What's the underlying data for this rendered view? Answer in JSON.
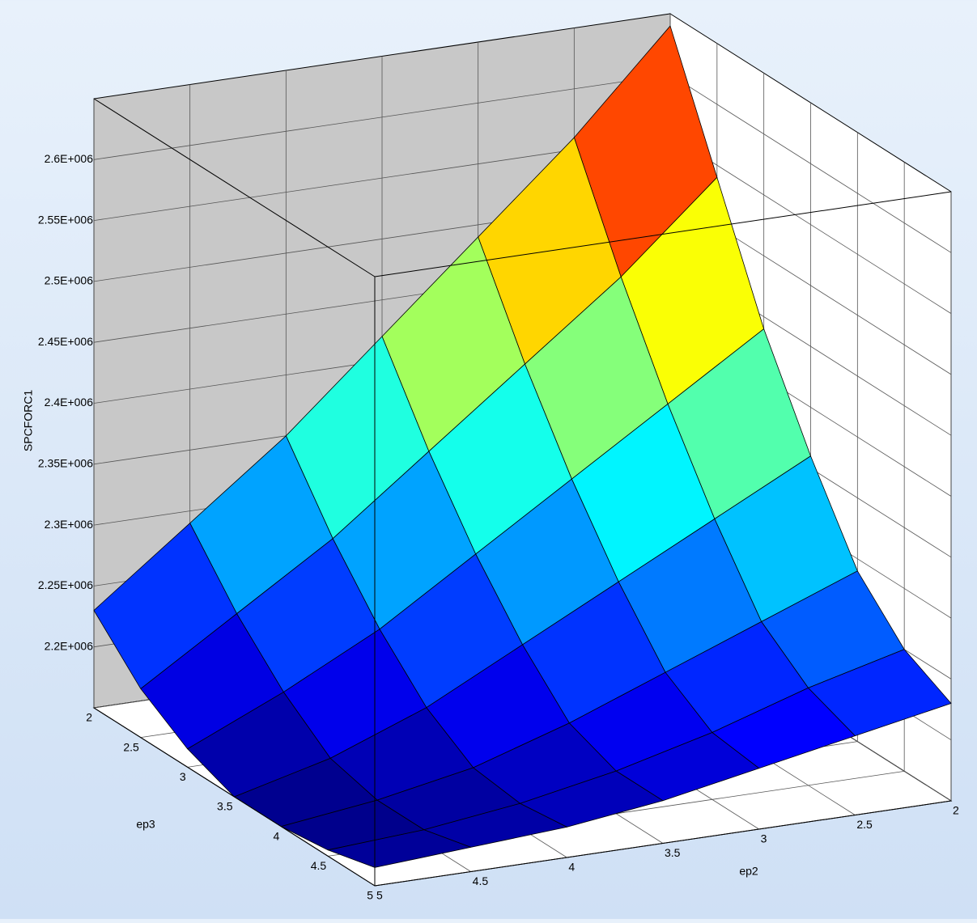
{
  "chart_data": {
    "type": "surface",
    "x_label": "ep2",
    "y_label": "ep3",
    "z_label": "SPCFORC1",
    "x": [
      2,
      2.5,
      3,
      3.5,
      4,
      4.5,
      5
    ],
    "y": [
      2,
      2.5,
      3,
      3.5,
      4,
      4.5,
      5
    ],
    "z": [
      [
        2640000,
        2540000,
        2440000,
        2360000,
        2290000,
        2250000,
        2230000
      ],
      [
        2560000,
        2470000,
        2390000,
        2320000,
        2260000,
        2230000,
        2215000
      ],
      [
        2490000,
        2410000,
        2340000,
        2280000,
        2230000,
        2205000,
        2200000
      ],
      [
        2420000,
        2350000,
        2290000,
        2240000,
        2200000,
        2185000,
        2185000
      ],
      [
        2350000,
        2290000,
        2240000,
        2200000,
        2175000,
        2170000,
        2175000
      ],
      [
        2290000,
        2240000,
        2200000,
        2170000,
        2160000,
        2160000,
        2170000
      ],
      [
        2230000,
        2190000,
        2165000,
        2150000,
        2150000,
        2155000,
        2165000
      ]
    ],
    "xlim": [
      2,
      5
    ],
    "ylim": [
      2,
      5
    ],
    "zlim": [
      2150000,
      2650000
    ],
    "xticks": [
      2,
      2.5,
      3,
      3.5,
      4,
      4.5,
      5
    ],
    "yticks": [
      2,
      2.5,
      3,
      3.5,
      4,
      4.5,
      5
    ],
    "zticks": [
      {
        "value": 2200000,
        "label": "2.2E+006"
      },
      {
        "value": 2250000,
        "label": "2.25E+006"
      },
      {
        "value": 2300000,
        "label": "2.3E+006"
      },
      {
        "value": 2350000,
        "label": "2.35E+006"
      },
      {
        "value": 2400000,
        "label": "2.4E+006"
      },
      {
        "value": 2450000,
        "label": "2.45E+006"
      },
      {
        "value": 2500000,
        "label": "2.5E+006"
      },
      {
        "value": 2550000,
        "label": "2.55E+006"
      },
      {
        "value": 2600000,
        "label": "2.6E+006"
      }
    ],
    "grid": true
  }
}
